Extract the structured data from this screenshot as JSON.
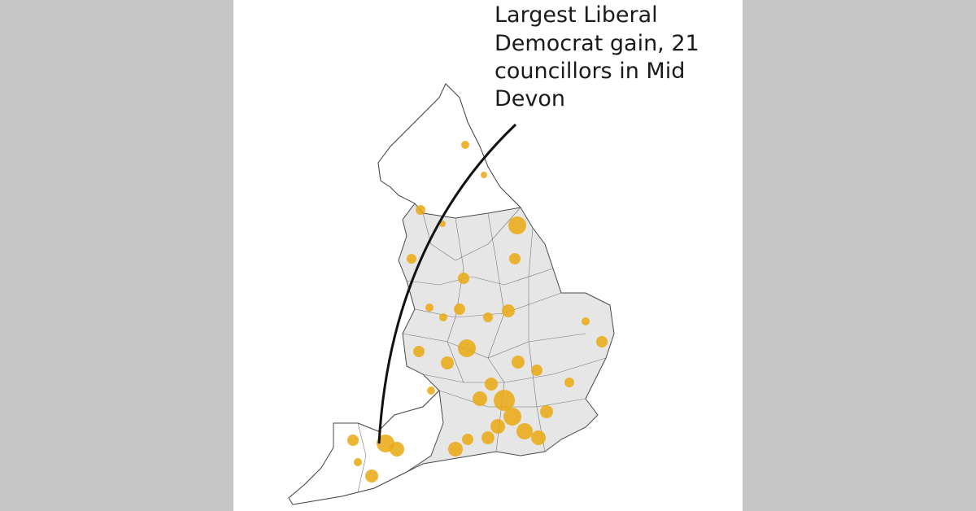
{
  "annotation": {
    "lines": [
      "Largest Liberal",
      "Democrat gain, 21",
      "councillors in Mid",
      "Devon"
    ]
  }
}
